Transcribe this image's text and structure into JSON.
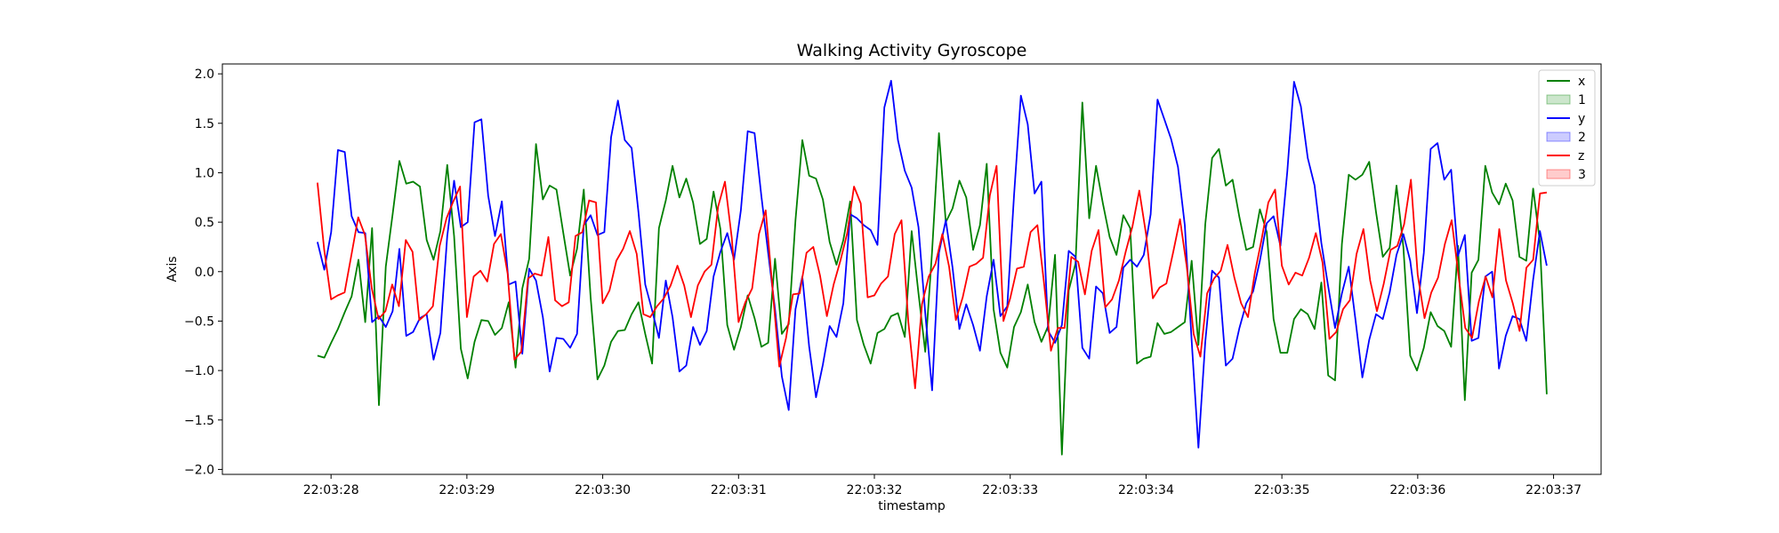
{
  "chart_data": {
    "type": "line",
    "title": "Walking Activity Gyroscope",
    "xlabel": "timestamp",
    "ylabel": "Axis",
    "x_start": "22:03:27.900",
    "x_end": "22:03:36.950",
    "xlim": [
      "22:03:27.200",
      "22:03:37.350"
    ],
    "ylim": [
      -2.05,
      2.1
    ],
    "x_ticks": [
      "22:03:28",
      "22:03:29",
      "22:03:30",
      "22:03:31",
      "22:03:32",
      "22:03:33",
      "22:03:34",
      "22:03:35",
      "22:03:36",
      "22:03:37"
    ],
    "y_ticks": [
      "2.0",
      "1.5",
      "1.0",
      "0.5",
      "0.0",
      "−0.5",
      "−1.0",
      "−1.5",
      "−2.0"
    ],
    "grid": false,
    "legend_position": "top-right",
    "legend": [
      {
        "label": "x",
        "kind": "line",
        "color": "#008000"
      },
      {
        "label": "1",
        "kind": "fill",
        "color": "#008000"
      },
      {
        "label": "y",
        "kind": "line",
        "color": "#0000ff"
      },
      {
        "label": "2",
        "kind": "fill",
        "color": "#0000ff"
      },
      {
        "label": "z",
        "kind": "line",
        "color": "#ff0000"
      },
      {
        "label": "3",
        "kind": "fill",
        "color": "#ff0000"
      }
    ],
    "series": [
      {
        "name": "x",
        "color": "#008000",
        "values": [
          -0.85,
          -0.87,
          -0.72,
          -0.58,
          -0.41,
          -0.25,
          0.12,
          -0.51,
          0.44,
          -1.35,
          0.05,
          0.58,
          1.12,
          0.89,
          0.91,
          0.86,
          0.32,
          0.12,
          0.41,
          1.08,
          0.36,
          -0.78,
          -1.08,
          -0.71,
          -0.49,
          -0.5,
          -0.64,
          -0.57,
          -0.31,
          -0.97,
          -0.17,
          0.13,
          1.29,
          0.73,
          0.87,
          0.83,
          0.39,
          -0.04,
          0.23,
          0.83,
          -0.26,
          -1.09,
          -0.95,
          -0.71,
          -0.6,
          -0.59,
          -0.43,
          -0.31,
          -0.63,
          -0.93,
          0.44,
          0.72,
          1.07,
          0.75,
          0.94,
          0.7,
          0.28,
          0.33,
          0.81,
          0.43,
          -0.54,
          -0.79,
          -0.56,
          -0.24,
          -0.47,
          -0.76,
          -0.72,
          0.13,
          -0.63,
          -0.53,
          0.52,
          1.33,
          0.97,
          0.94,
          0.73,
          0.3,
          0.07,
          0.32,
          0.71,
          -0.49,
          -0.74,
          -0.93,
          -0.62,
          -0.58,
          -0.45,
          -0.42,
          -0.66,
          0.41,
          -0.22,
          -0.81,
          0.21,
          1.4,
          0.5,
          0.64,
          0.92,
          0.75,
          0.22,
          0.47,
          1.09,
          -0.38,
          -0.82,
          -0.97,
          -0.56,
          -0.41,
          -0.13,
          -0.51,
          -0.71,
          -0.55,
          0.17,
          -1.85,
          -0.19,
          0.08,
          1.71,
          0.54,
          1.07,
          0.69,
          0.35,
          0.17,
          0.57,
          0.44,
          -0.93,
          -0.88,
          -0.86,
          -0.52,
          -0.63,
          -0.61,
          -0.56,
          -0.51,
          0.11,
          -0.74,
          0.48,
          1.15,
          1.24,
          0.87,
          0.93,
          0.55,
          0.22,
          0.25,
          0.63,
          0.4,
          -0.48,
          -0.82,
          -0.82,
          -0.48,
          -0.38,
          -0.43,
          -0.58,
          -0.11,
          -1.05,
          -1.1,
          0.28,
          0.98,
          0.93,
          0.98,
          1.11,
          0.6,
          0.15,
          0.24,
          0.87,
          0.25,
          -0.85,
          -1.0,
          -0.77,
          -0.41,
          -0.55,
          -0.6,
          -0.76,
          0.26,
          -1.3,
          -0.01,
          0.12,
          1.07,
          0.8,
          0.68,
          0.89,
          0.72,
          0.15,
          0.11,
          0.84,
          0.3,
          -1.24
        ]
      },
      {
        "name": "y",
        "color": "#0000ff",
        "values": [
          0.3,
          0.02,
          0.4,
          1.23,
          1.21,
          0.56,
          0.4,
          0.39,
          -0.51,
          -0.45,
          -0.56,
          -0.4,
          0.23,
          -0.65,
          -0.61,
          -0.47,
          -0.43,
          -0.89,
          -0.62,
          0.36,
          0.92,
          0.45,
          0.5,
          1.51,
          1.54,
          0.77,
          0.36,
          0.71,
          -0.13,
          -0.1,
          -0.83,
          0.03,
          -0.09,
          -0.46,
          -1.01,
          -0.67,
          -0.68,
          -0.77,
          -0.63,
          0.47,
          0.57,
          0.37,
          0.4,
          1.36,
          1.73,
          1.33,
          1.25,
          0.6,
          -0.13,
          -0.39,
          -0.67,
          -0.09,
          -0.46,
          -1.01,
          -0.95,
          -0.56,
          -0.74,
          -0.6,
          -0.05,
          0.2,
          0.39,
          0.12,
          0.62,
          1.42,
          1.4,
          0.76,
          0.19,
          -0.38,
          -1.06,
          -1.4,
          -0.38,
          -0.05,
          -0.76,
          -1.27,
          -0.94,
          -0.55,
          -0.66,
          -0.32,
          0.58,
          0.54,
          0.47,
          0.42,
          0.27,
          1.66,
          1.93,
          1.33,
          1.02,
          0.85,
          0.45,
          -0.42,
          -1.2,
          0.19,
          0.52,
          0.04,
          -0.58,
          -0.33,
          -0.54,
          -0.8,
          -0.25,
          0.12,
          -0.45,
          -0.35,
          0.77,
          1.78,
          1.49,
          0.79,
          0.91,
          -0.6,
          -0.72,
          -0.54,
          0.21,
          0.15,
          -0.77,
          -0.88,
          -0.15,
          -0.22,
          -0.62,
          -0.56,
          0.04,
          0.12,
          0.05,
          0.17,
          0.58,
          1.74,
          1.54,
          1.34,
          1.06,
          0.47,
          -0.7,
          -1.78,
          -0.71,
          0.01,
          -0.06,
          -0.95,
          -0.88,
          -0.57,
          -0.32,
          -0.2,
          0.11,
          0.49,
          0.56,
          0.26,
          1.01,
          1.92,
          1.67,
          1.15,
          0.87,
          0.29,
          -0.15,
          -0.57,
          -0.22,
          0.05,
          -0.49,
          -1.07,
          -0.69,
          -0.43,
          -0.48,
          -0.21,
          0.17,
          0.38,
          0.11,
          -0.42,
          0.19,
          1.24,
          1.3,
          0.93,
          1.03,
          0.16,
          0.37,
          -0.7,
          -0.67,
          -0.05,
          0.0,
          -0.98,
          -0.65,
          -0.45,
          -0.48,
          -0.7,
          -0.08,
          0.41,
          0.06
        ]
      },
      {
        "name": "z",
        "color": "#ff0000",
        "values": [
          0.9,
          0.22,
          -0.28,
          -0.24,
          -0.21,
          0.17,
          0.55,
          0.37,
          -0.17,
          -0.48,
          -0.4,
          -0.13,
          -0.35,
          0.32,
          0.2,
          -0.49,
          -0.43,
          -0.35,
          0.26,
          0.54,
          0.71,
          0.86,
          -0.46,
          -0.05,
          0.01,
          -0.1,
          0.28,
          0.38,
          -0.02,
          -0.89,
          -0.81,
          -0.07,
          -0.02,
          -0.04,
          0.35,
          -0.29,
          -0.35,
          -0.31,
          0.36,
          0.4,
          0.72,
          0.7,
          -0.32,
          -0.19,
          0.11,
          0.23,
          0.41,
          0.18,
          -0.43,
          -0.46,
          -0.35,
          -0.27,
          -0.14,
          0.06,
          -0.14,
          -0.46,
          -0.14,
          0.0,
          0.07,
          0.66,
          0.91,
          0.34,
          -0.51,
          -0.31,
          -0.17,
          0.38,
          0.62,
          -0.17,
          -0.96,
          -0.67,
          -0.23,
          -0.22,
          0.19,
          0.25,
          -0.04,
          -0.45,
          -0.13,
          0.11,
          0.39,
          0.86,
          0.69,
          -0.26,
          -0.24,
          -0.12,
          -0.05,
          0.38,
          0.52,
          -0.51,
          -1.18,
          -0.33,
          -0.05,
          0.08,
          0.38,
          0.05,
          -0.49,
          -0.26,
          0.05,
          0.08,
          0.14,
          0.77,
          1.07,
          -0.5,
          -0.27,
          0.03,
          0.05,
          0.4,
          0.47,
          -0.13,
          -0.8,
          -0.57,
          -0.57,
          0.15,
          0.1,
          -0.23,
          0.21,
          0.42,
          -0.36,
          -0.28,
          -0.09,
          0.2,
          0.46,
          0.82,
          0.38,
          -0.27,
          -0.16,
          -0.12,
          0.2,
          0.53,
          0.05,
          -0.63,
          -0.86,
          -0.22,
          -0.07,
          0.01,
          0.27,
          -0.06,
          -0.32,
          -0.46,
          -0.02,
          0.32,
          0.7,
          0.83,
          0.06,
          -0.13,
          -0.01,
          -0.04,
          0.14,
          0.39,
          0.09,
          -0.68,
          -0.61,
          -0.38,
          -0.29,
          0.18,
          0.43,
          -0.09,
          -0.4,
          -0.12,
          0.22,
          0.26,
          0.48,
          0.93,
          -0.03,
          -0.47,
          -0.21,
          -0.06,
          0.28,
          0.52,
          -0.04,
          -0.57,
          -0.67,
          -0.3,
          -0.05,
          -0.26,
          0.43,
          -0.09,
          -0.32,
          -0.6,
          0.04,
          0.12,
          0.79,
          0.8
        ]
      }
    ]
  }
}
